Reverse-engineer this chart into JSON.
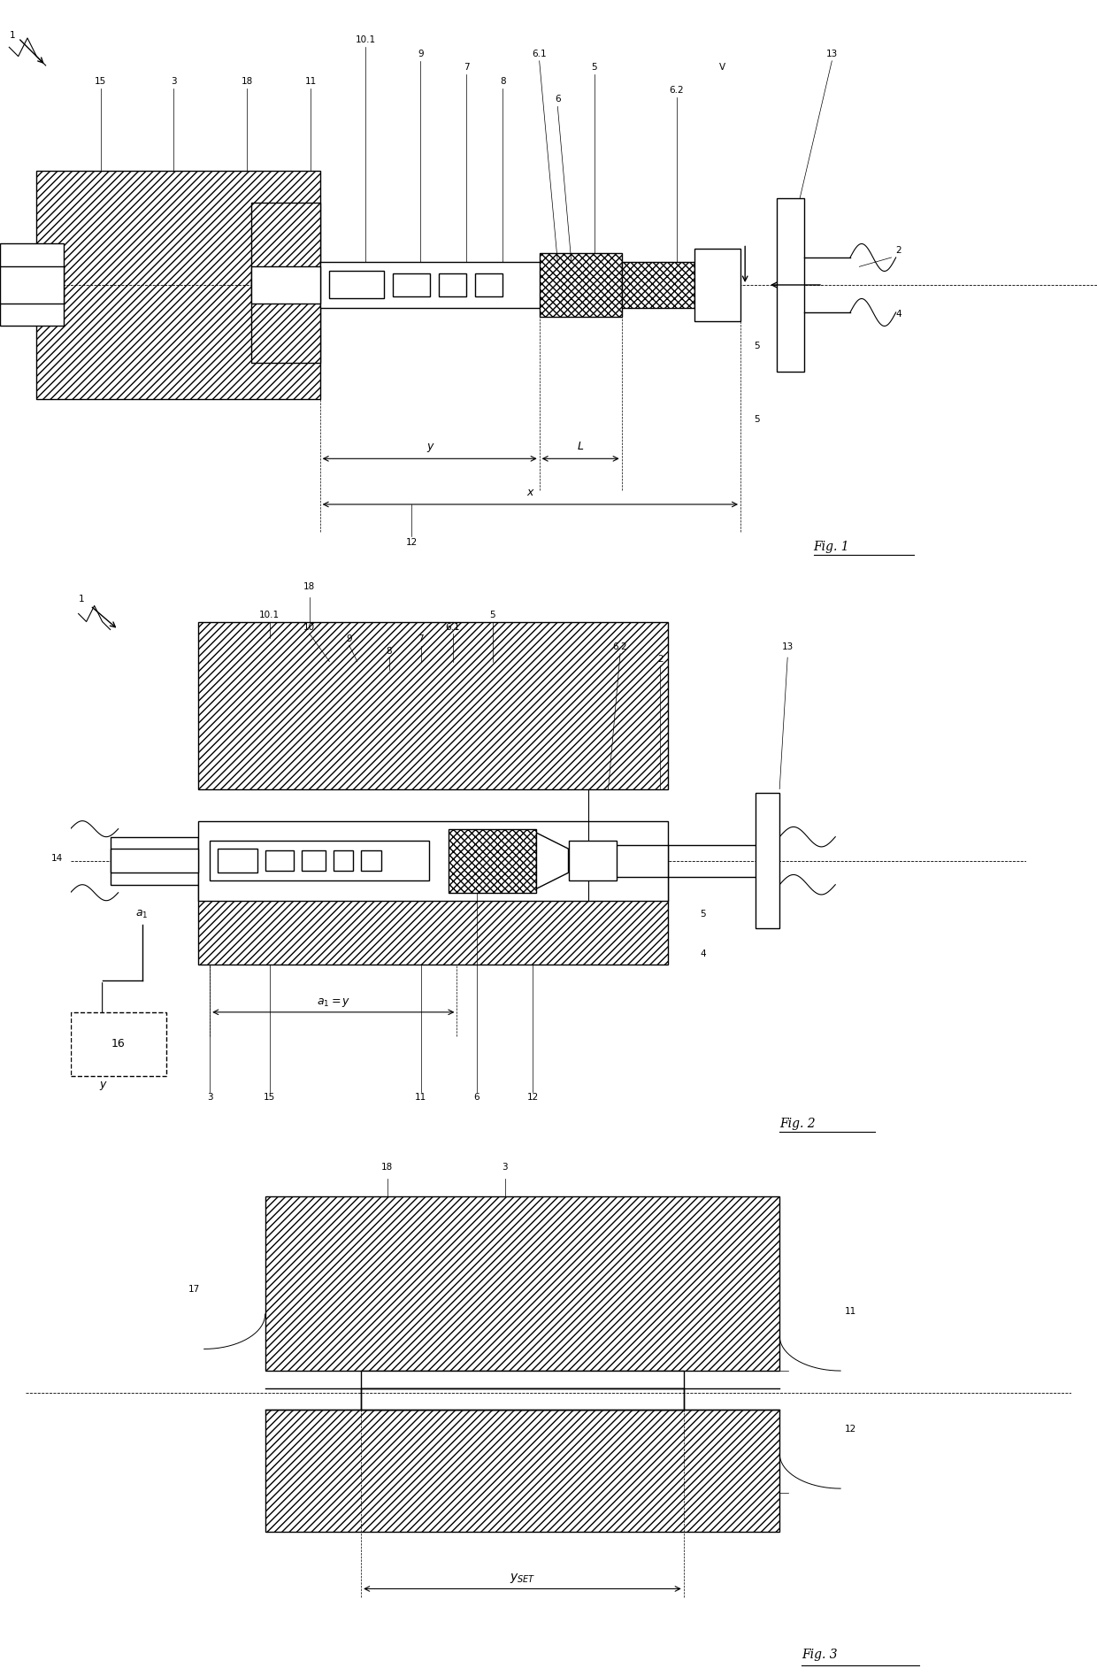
{
  "fig_width": 12.4,
  "fig_height": 18.94,
  "bg_color": "#ffffff",
  "line_color": "#000000",
  "fig1_label": "Fig. 1",
  "fig2_label": "Fig. 2",
  "fig3_label": "Fig. 3"
}
